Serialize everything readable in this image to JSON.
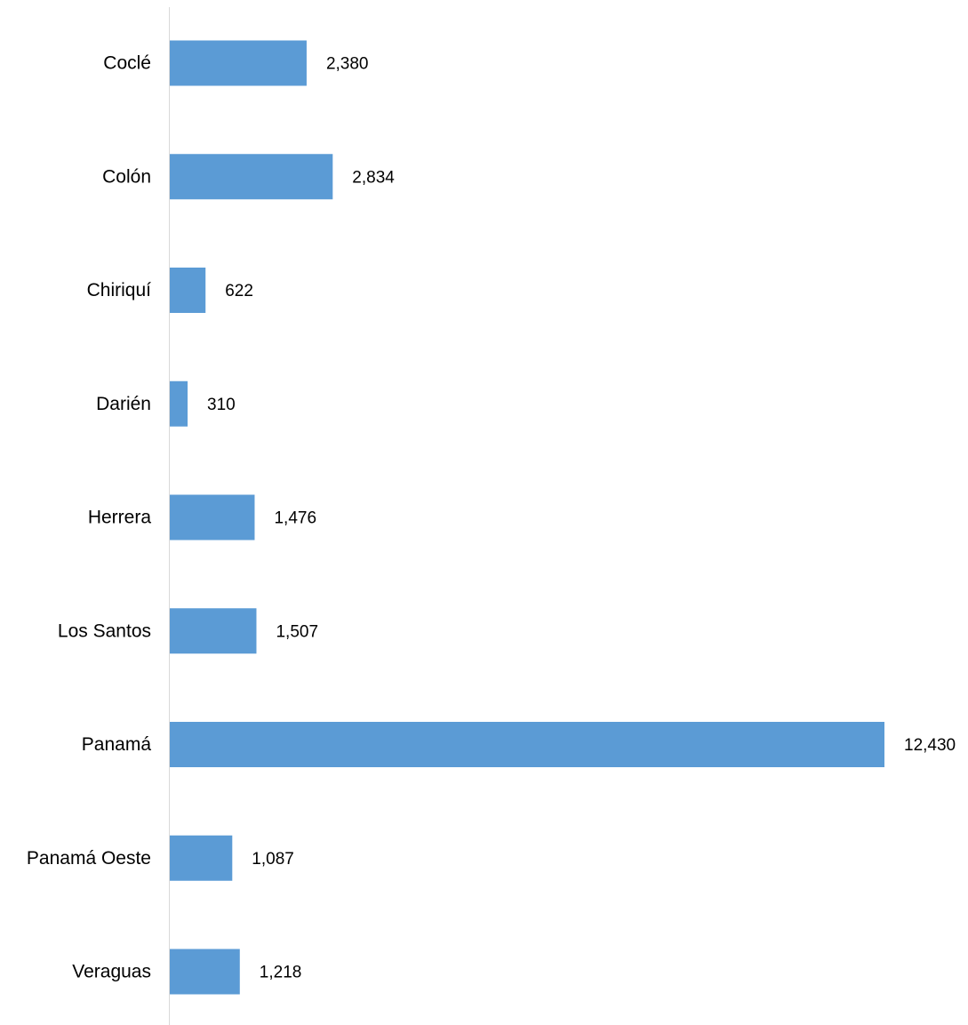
{
  "chart_data": {
    "type": "bar",
    "orientation": "horizontal",
    "categories": [
      "Coclé",
      "Colón",
      "Chiriquí",
      "Darién",
      "Herrera",
      "Los Santos",
      "Panamá",
      "Panamá Oeste",
      "Veraguas"
    ],
    "values": [
      2380,
      2834,
      622,
      310,
      1476,
      1507,
      12430,
      1087,
      1218
    ],
    "value_labels": [
      "2,380",
      "2,834",
      "622",
      "310",
      "1,476",
      "1,507",
      "12,430",
      "1,087",
      "1,218"
    ],
    "bar_color": "#5b9bd5",
    "axis_color": "#d9d9d9",
    "grid": false,
    "legend": "none"
  }
}
